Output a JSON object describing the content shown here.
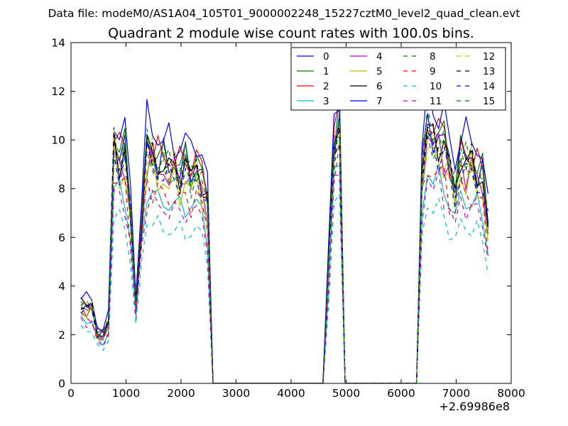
{
  "chart_data": {
    "type": "line",
    "supertitle": "Data file: modeM0/AS1A04_105T01_9000002248_15227cztM0_level2_quad_clean.evt",
    "title": "Quadrant 2 module wise count rates with 100.0s bins.",
    "xlabel": "",
    "ylabel": "",
    "x_offset_label": "+2.69986e8",
    "xlim": [
      0,
      8000
    ],
    "ylim": [
      0,
      14
    ],
    "xticks": [
      0,
      1000,
      2000,
      3000,
      4000,
      5000,
      6000,
      7000,
      8000
    ],
    "yticks": [
      0,
      2,
      4,
      6,
      8,
      10,
      12,
      14
    ],
    "legend_position": "top-right",
    "x": [
      180,
      280,
      380,
      480,
      580,
      680,
      780,
      880,
      980,
      1080,
      1180,
      1280,
      1380,
      1480,
      1580,
      1680,
      1780,
      1880,
      1980,
      2080,
      2180,
      2280,
      2380,
      2480,
      2580,
      2680,
      2780,
      2880,
      2980,
      3080,
      3180,
      3280,
      3380,
      3480,
      3580,
      3680,
      3780,
      3880,
      3980,
      4080,
      4180,
      4280,
      4380,
      4480,
      4580,
      4680,
      4780,
      4880,
      4980,
      5080,
      5180,
      5280,
      5380,
      5480,
      5580,
      5680,
      5780,
      5880,
      5980,
      6080,
      6180,
      6280,
      6380,
      6480,
      6580,
      6680,
      6780,
      6880,
      6980,
      7080,
      7180,
      7280,
      7380,
      7480,
      7580
    ],
    "active_segments": [
      {
        "start": 0,
        "profile": [
          1.0,
          0.93,
          0.95,
          0.62,
          0.6,
          0.75,
          2.95,
          2.8,
          2.85,
          2.15,
          1.0,
          2.05,
          2.9,
          2.85,
          2.7,
          2.75,
          2.65,
          2.7,
          2.6,
          2.72,
          2.58,
          2.7,
          2.55,
          2.2,
          0.0
        ]
      },
      {
        "start": 44,
        "profile": [
          0.0,
          1.5,
          3.0,
          3.25,
          0.0
        ]
      },
      {
        "start": 61,
        "profile": [
          0.0,
          2.65,
          3.2,
          3.0,
          3.05,
          2.95,
          2.7,
          2.4,
          2.85,
          2.7,
          2.75,
          2.6,
          2.55,
          1.95
        ]
      }
    ],
    "series": [
      {
        "name": "0",
        "color": "#0000ff",
        "dash": "solid",
        "scale": 3.35,
        "phase": 0.3
      },
      {
        "name": "1",
        "color": "#008000",
        "dash": "solid",
        "scale": 3.4,
        "phase": 1.1
      },
      {
        "name": "2",
        "color": "#ff0000",
        "dash": "solid",
        "scale": 3.45,
        "phase": 2.0
      },
      {
        "name": "3",
        "color": "#00bfbf",
        "dash": "solid",
        "scale": 2.75,
        "phase": 2.7
      },
      {
        "name": "4",
        "color": "#bf00bf",
        "dash": "solid",
        "scale": 3.2,
        "phase": 3.5
      },
      {
        "name": "5",
        "color": "#bfbf00",
        "dash": "solid",
        "scale": 3.05,
        "phase": 4.2
      },
      {
        "name": "6",
        "color": "#000000",
        "dash": "solid",
        "scale": 3.3,
        "phase": 5.0
      },
      {
        "name": "7",
        "color": "#0000ff",
        "dash": "solid",
        "scale": 3.7,
        "phase": 5.8
      },
      {
        "name": "8",
        "color": "#008000",
        "dash": "dashed",
        "scale": 3.2,
        "phase": 0.7
      },
      {
        "name": "9",
        "color": "#ff0000",
        "dash": "dashed",
        "scale": 2.85,
        "phase": 1.6
      },
      {
        "name": "10",
        "color": "#00bfbf",
        "dash": "dashed",
        "scale": 2.35,
        "phase": 2.4
      },
      {
        "name": "11",
        "color": "#bf00bf",
        "dash": "dashed",
        "scale": 2.65,
        "phase": 3.1
      },
      {
        "name": "12",
        "color": "#bfbf00",
        "dash": "dashed",
        "scale": 3.25,
        "phase": 3.9
      },
      {
        "name": "13",
        "color": "#000000",
        "dash": "dashed",
        "scale": 3.3,
        "phase": 4.6
      },
      {
        "name": "14",
        "color": "#0000ff",
        "dash": "dashed",
        "scale": 3.15,
        "phase": 5.3
      },
      {
        "name": "15",
        "color": "#008000",
        "dash": "dashed",
        "scale": 3.35,
        "phase": 6.0
      }
    ]
  }
}
